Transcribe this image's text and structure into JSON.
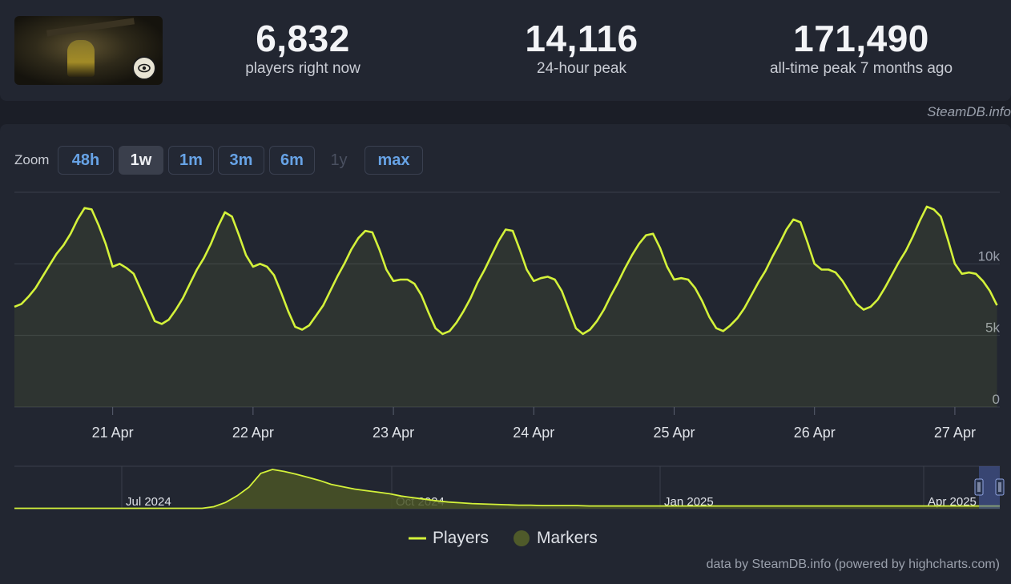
{
  "header": {
    "stats": [
      {
        "value": "6,832",
        "label": "players right now"
      },
      {
        "value": "14,116",
        "label": "24-hour peak"
      },
      {
        "value": "171,490",
        "label": "all-time peak 7 months ago"
      }
    ],
    "credit": "SteamDB.info"
  },
  "zoom": {
    "label": "Zoom",
    "buttons": [
      {
        "label": "48h",
        "state": "normal"
      },
      {
        "label": "1w",
        "state": "active"
      },
      {
        "label": "1m",
        "state": "normal"
      },
      {
        "label": "3m",
        "state": "normal"
      },
      {
        "label": "6m",
        "state": "normal"
      },
      {
        "label": "1y",
        "state": "disabled"
      },
      {
        "label": "max",
        "state": "normal"
      }
    ]
  },
  "legend": {
    "players": "Players",
    "markers": "Markers"
  },
  "footer_credit": "data by SteamDB.info (powered by highcharts.com)",
  "colors": {
    "line": "#d4f23a",
    "marker": "#4f5a2a",
    "background": "#222631",
    "grid": "#3a3f4a",
    "button_text": "#67a3e6"
  },
  "chart_data": [
    {
      "type": "line",
      "series": [
        {
          "name": "Players",
          "x": [
            20.3,
            20.35,
            20.4,
            20.45,
            20.5,
            20.55,
            20.6,
            20.65,
            20.7,
            20.75,
            20.8,
            20.85,
            20.9,
            20.95,
            21.0,
            21.05,
            21.1,
            21.15,
            21.2,
            21.25,
            21.3,
            21.35,
            21.4,
            21.45,
            21.5,
            21.55,
            21.6,
            21.65,
            21.7,
            21.75,
            21.8,
            21.85,
            21.9,
            21.95,
            22.0,
            22.05,
            22.1,
            22.15,
            22.2,
            22.25,
            22.3,
            22.35,
            22.4,
            22.45,
            22.5,
            22.55,
            22.6,
            22.65,
            22.7,
            22.75,
            22.8,
            22.85,
            22.9,
            22.95,
            23.0,
            23.05,
            23.1,
            23.15,
            23.2,
            23.25,
            23.3,
            23.35,
            23.4,
            23.45,
            23.5,
            23.55,
            23.6,
            23.65,
            23.7,
            23.75,
            23.8,
            23.85,
            23.9,
            23.95,
            24.0,
            24.05,
            24.1,
            24.15,
            24.2,
            24.25,
            24.3,
            24.35,
            24.4,
            24.45,
            24.5,
            24.55,
            24.6,
            24.65,
            24.7,
            24.75,
            24.8,
            24.85,
            24.9,
            24.95,
            25.0,
            25.05,
            25.1,
            25.15,
            25.2,
            25.25,
            25.3,
            25.35,
            25.4,
            25.45,
            25.5,
            25.55,
            25.6,
            25.65,
            25.7,
            25.75,
            25.8,
            25.85,
            25.9,
            25.95,
            26.0,
            26.05,
            26.1,
            26.15,
            26.2,
            26.25,
            26.3,
            26.35,
            26.4,
            26.45,
            26.5,
            26.55,
            26.6,
            26.65,
            26.7,
            26.75,
            26.8,
            26.85,
            26.9,
            26.95,
            27.0,
            27.05,
            27.1,
            27.15,
            27.2,
            27.25,
            27.3
          ],
          "values": [
            7000,
            7200,
            7700,
            8300,
            9100,
            9900,
            10700,
            11300,
            12100,
            13100,
            13900,
            13800,
            12700,
            11400,
            9800,
            10000,
            9700,
            9300,
            8200,
            7100,
            6000,
            5800,
            6100,
            6800,
            7600,
            8600,
            9600,
            10400,
            11400,
            12600,
            13600,
            13300,
            12000,
            10600,
            9800,
            10000,
            9800,
            9200,
            8000,
            6700,
            5600,
            5400,
            5700,
            6400,
            7100,
            8100,
            9100,
            10000,
            11000,
            11800,
            12300,
            12200,
            11000,
            9600,
            8800,
            8900,
            8900,
            8600,
            7800,
            6600,
            5500,
            5100,
            5300,
            5900,
            6700,
            7600,
            8700,
            9600,
            10600,
            11600,
            12400,
            12300,
            11000,
            9600,
            8800,
            9000,
            9100,
            8900,
            8100,
            6800,
            5500,
            5100,
            5400,
            6000,
            6800,
            7800,
            8700,
            9700,
            10600,
            11400,
            12000,
            12100,
            11100,
            9800,
            8900,
            9000,
            8900,
            8300,
            7400,
            6300,
            5500,
            5300,
            5700,
            6200,
            6900,
            7800,
            8700,
            9500,
            10500,
            11400,
            12400,
            13100,
            12900,
            11500,
            10000,
            9600,
            9600,
            9400,
            8800,
            8000,
            7200,
            6800,
            7000,
            7500,
            8300,
            9200,
            10100,
            10900,
            11900,
            13000,
            14000,
            13800,
            13300,
            11700,
            10000,
            9300,
            9400,
            9300,
            8800,
            8100,
            7100
          ]
        }
      ],
      "xticks": [
        "21 Apr",
        "22 Apr",
        "23 Apr",
        "24 Apr",
        "25 Apr",
        "26 Apr",
        "27 Apr"
      ],
      "xtick_values": [
        21,
        22,
        23,
        24,
        25,
        26,
        27
      ],
      "yticks": [
        "0",
        "5k",
        "10k"
      ],
      "ytick_values": [
        0,
        5000,
        10000
      ],
      "xlim": [
        20.3,
        27.32
      ],
      "ylim": [
        0,
        15000
      ],
      "grid": true
    },
    {
      "type": "area",
      "series": [
        {
          "name": "Players",
          "x": [
            0,
            0.5,
            1,
            1.5,
            2,
            2.2,
            2.5,
            2.7,
            3,
            3.1,
            3.3,
            3.5,
            3.7,
            3.85,
            4,
            4.2,
            4.4,
            4.6,
            4.8,
            5,
            5.2,
            5.4,
            5.6,
            5.8,
            6,
            6.2,
            6.4,
            6.6,
            6.8,
            7,
            7.3,
            7.6,
            8,
            8.5,
            9,
            9.5,
            10,
            10.5,
            11,
            11.5,
            12,
            12.5,
            13,
            13.5,
            14,
            14.5,
            15,
            15.5,
            16,
            16.5,
            17,
            17.5,
            18,
            18.5,
            19,
            19.5,
            20,
            20.5,
            21,
            21.5,
            22,
            22.5,
            23,
            23.5,
            24,
            24.5,
            25,
            25.5,
            26,
            26.5,
            27,
            27.5,
            28,
            28.5,
            29,
            29.5,
            30,
            30.5,
            31,
            31.5,
            32,
            32.5,
            33,
            33.5,
            34,
            34.5,
            35,
            35.5,
            36,
            36.5,
            37,
            37.5,
            38,
            38.5,
            39,
            39.5,
            40,
            40.5,
            41,
            41.5,
            42
          ],
          "values": [
            0.01,
            0.01,
            0.01,
            0.01,
            0.01,
            0.01,
            0.01,
            0.01,
            0.01,
            0.01,
            0.01,
            0.01,
            0.01,
            0.01,
            0.01,
            0.01,
            0.01,
            0.01,
            0.01,
            0.01,
            0.01,
            0.01,
            0.01,
            0.01,
            0.01,
            0.01,
            0.01,
            0.01,
            0.01,
            0.01,
            0.01,
            0.01,
            0.01,
            0.05,
            0.16,
            0.33,
            0.55,
            0.9,
            1.0,
            0.95,
            0.88,
            0.8,
            0.72,
            0.62,
            0.56,
            0.5,
            0.46,
            0.42,
            0.38,
            0.32,
            0.28,
            0.24,
            0.2,
            0.17,
            0.15,
            0.13,
            0.12,
            0.11,
            0.1,
            0.09,
            0.09,
            0.08,
            0.08,
            0.08,
            0.08,
            0.07,
            0.07,
            0.07,
            0.07,
            0.07,
            0.07,
            0.07,
            0.07,
            0.07,
            0.07,
            0.07,
            0.07,
            0.07,
            0.07,
            0.07,
            0.07,
            0.07,
            0.07,
            0.07,
            0.07,
            0.07,
            0.07,
            0.07,
            0.07,
            0.07,
            0.07,
            0.07,
            0.07,
            0.07,
            0.07,
            0.07,
            0.07,
            0.07,
            0.07,
            0.07,
            0.07
          ]
        }
      ],
      "xticks": [
        "Jul 2024",
        "Oct 2024",
        "Jan 2025",
        "Apr 2025"
      ],
      "grid": true
    }
  ]
}
